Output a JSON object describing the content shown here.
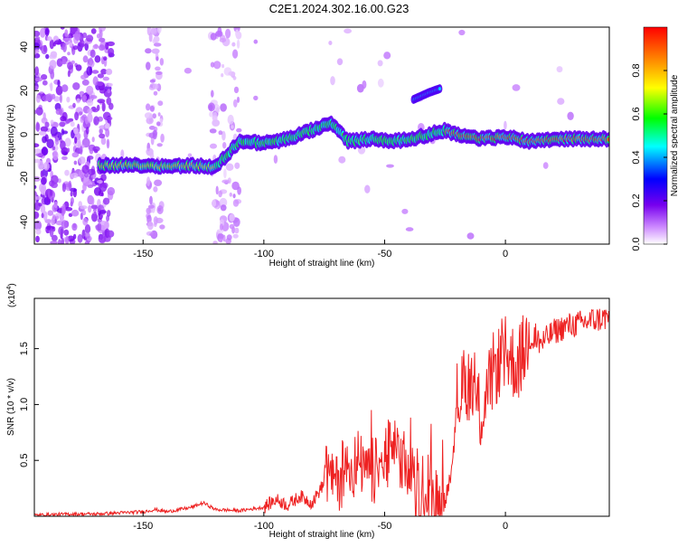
{
  "title": "C2E1.2024.302.16.00.G23",
  "chart_data": [
    {
      "type": "heatmap",
      "title": "C2E1.2024.302.16.00.G23",
      "xlabel": "Height of straight line (km)",
      "ylabel": "Frequency (Hz)",
      "xlim": [
        -195,
        43
      ],
      "ylim": [
        -50,
        49
      ],
      "x_ticks": [
        "-150",
        "-100",
        "-50",
        "0"
      ],
      "y_ticks": [
        "-40",
        "-20",
        "0",
        "20",
        "40"
      ],
      "colorbar": {
        "label": "Normalized spectral amplitude",
        "range": [
          0,
          1
        ],
        "ticks": [
          "0.0",
          "0.2",
          "0.4",
          "0.6",
          "0.8"
        ],
        "colors": [
          "#ffffff",
          "#cc88ff",
          "#7700ee",
          "#0000ff",
          "#00ffff",
          "#00ff00",
          "#ffff00",
          "#ff8800",
          "#ff0000"
        ]
      },
      "ridge": {
        "x": [
          -165,
          -150,
          -140,
          -130,
          -120,
          -110,
          -100,
          -90,
          -80,
          -72,
          -65,
          -55,
          -45,
          -35,
          -25,
          -20,
          -10,
          0,
          10,
          20,
          30,
          43
        ],
        "frequency": [
          -14,
          -14,
          -14.5,
          -14,
          -15,
          -3,
          -4,
          -2,
          2,
          5,
          -3,
          -2,
          -3,
          -1,
          2,
          0,
          -2,
          -1,
          -3,
          -2,
          -2,
          -2
        ]
      },
      "branch": {
        "x": [
          -38,
          -32,
          -27
        ],
        "frequency": [
          16,
          19,
          21
        ]
      }
    },
    {
      "type": "line",
      "xlabel": "Height of straight line (km)",
      "ylabel": "SNR (10 * v/v)",
      "y_exponent_label": "(x10",
      "y_exponent_power": "4",
      "y_exponent_close": ")",
      "xlim": [
        -195,
        43
      ],
      "ylim": [
        0,
        1.95
      ],
      "x_ticks": [
        "-150",
        "-100",
        "-50",
        "0"
      ],
      "y_ticks": [
        "0.5",
        "1.0",
        "1.5"
      ],
      "series": [
        {
          "color": "#ee2222",
          "x": [
            -195,
            -180,
            -170,
            -160,
            -150,
            -145,
            -140,
            -130,
            -125,
            -120,
            -110,
            -100,
            -95,
            -90,
            -85,
            -80,
            -75,
            -70,
            -65,
            -60,
            -55,
            -50,
            -45,
            -40,
            -35,
            -30,
            -25,
            -22,
            -20,
            -15,
            -10,
            -5,
            0,
            5,
            10,
            15,
            20,
            25,
            30,
            35,
            43
          ],
          "y": [
            0.01,
            0.02,
            0.02,
            0.03,
            0.04,
            0.06,
            0.04,
            0.08,
            0.12,
            0.06,
            0.05,
            0.08,
            0.15,
            0.1,
            0.18,
            0.12,
            0.3,
            0.35,
            0.4,
            0.45,
            0.38,
            0.5,
            0.6,
            0.35,
            0.1,
            0.12,
            0.15,
            0.4,
            1.05,
            1.2,
            0.9,
            1.3,
            1.45,
            1.35,
            1.6,
            1.55,
            1.65,
            1.7,
            1.72,
            1.75,
            1.78
          ]
        }
      ]
    }
  ]
}
